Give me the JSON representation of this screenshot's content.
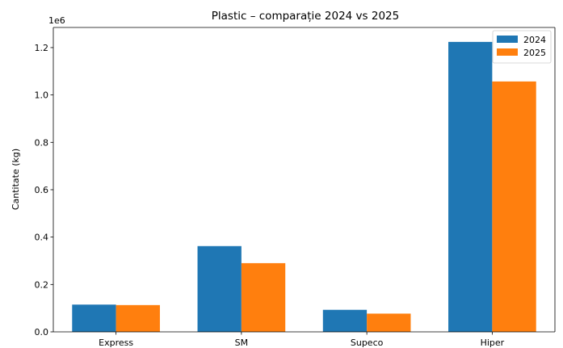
{
  "chart_data": {
    "type": "bar",
    "title": "Plastic – comparație 2024 vs 2025",
    "xlabel": "",
    "ylabel": "Cantitate (kg)",
    "y_offset_label": "1e6",
    "categories": [
      "Express",
      "SM",
      "Supeco",
      "Hiper"
    ],
    "series": [
      {
        "name": "2024",
        "color": "#1f77b4",
        "values": [
          115000,
          362000,
          93000,
          1224000
        ]
      },
      {
        "name": "2025",
        "color": "#ff7f0e",
        "values": [
          113000,
          290000,
          77000,
          1057000
        ]
      }
    ],
    "ylim": [
      0,
      1285000
    ],
    "yticks": [
      0,
      200000,
      400000,
      600000,
      800000,
      1000000,
      1200000
    ],
    "ytick_labels": [
      "0.0",
      "0.2",
      "0.4",
      "0.6",
      "0.8",
      "1.0",
      "1.2"
    ],
    "legend_position": "top-right",
    "grid": false
  }
}
